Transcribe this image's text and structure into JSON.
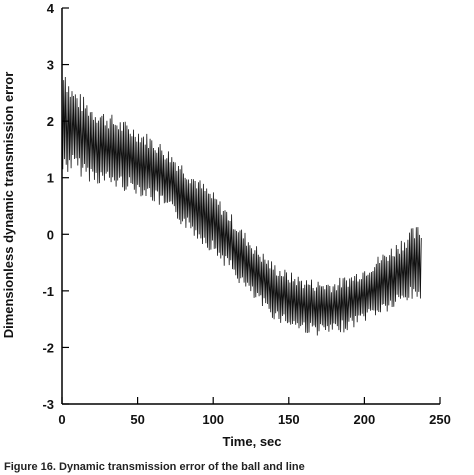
{
  "chart_data": {
    "type": "line",
    "title": "",
    "xlabel": "Time, sec",
    "ylabel": "Dimensionless dynamic transmission error",
    "xlim": [
      0,
      250
    ],
    "ylim": [
      -3,
      4
    ],
    "x_ticks": [
      "0",
      "50",
      "100",
      "150",
      "200",
      "250"
    ],
    "y_ticks": [
      "4",
      "3",
      "2",
      "1",
      "0",
      "-1",
      "-2",
      "-3"
    ],
    "x_tick_values": [
      0,
      50,
      100,
      150,
      200,
      250
    ],
    "y_tick_values": [
      4,
      3,
      2,
      1,
      0,
      -1,
      -2,
      -3
    ],
    "grid": false,
    "caption": "Figure 16.    Dynamic transmission error of the ball and line",
    "series": [
      {
        "mean": {
          "x": [
            0,
            5,
            10,
            20,
            30,
            40,
            50,
            60,
            70,
            80,
            90,
            100,
            110,
            120,
            130,
            140,
            150,
            160,
            170,
            180,
            190,
            200,
            210,
            220,
            230,
            238
          ],
          "y": [
            2.1,
            1.9,
            1.8,
            1.6,
            1.5,
            1.4,
            1.3,
            1.15,
            0.95,
            0.7,
            0.45,
            0.2,
            -0.1,
            -0.45,
            -0.75,
            -1.0,
            -1.15,
            -1.25,
            -1.3,
            -1.3,
            -1.2,
            -1.05,
            -0.9,
            -0.75,
            -0.55,
            -0.5
          ]
        },
        "envelope_half_width": {
          "x": [
            0,
            5,
            10,
            20,
            50,
            100,
            150,
            200,
            230,
            238
          ],
          "y": [
            1.2,
            0.8,
            0.75,
            0.7,
            0.6,
            0.55,
            0.5,
            0.5,
            0.65,
            0.7
          ]
        }
      }
    ]
  }
}
